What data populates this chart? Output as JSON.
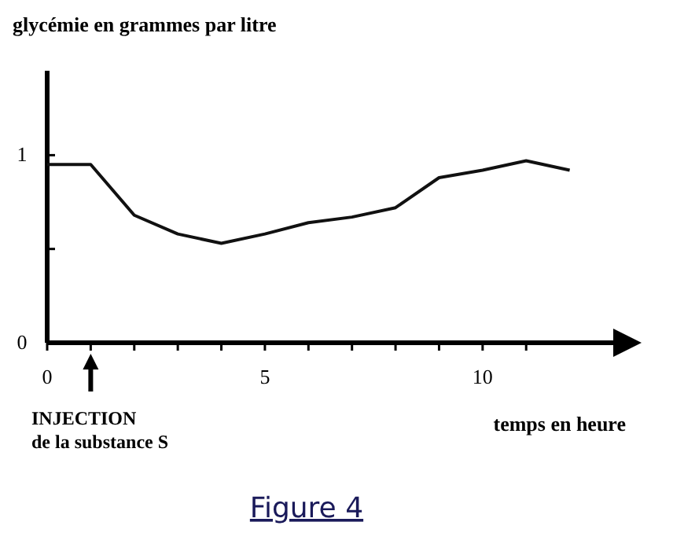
{
  "chart_data": {
    "type": "line",
    "title": "Figure 4",
    "ylabel": "glycémie en grammes par litre",
    "xlabel": "temps en heure",
    "x": [
      0,
      1,
      2,
      3,
      4,
      5,
      6,
      7,
      8,
      9,
      10,
      11,
      12
    ],
    "series": [
      {
        "color": "#111111",
        "values": [
          0.95,
          0.95,
          0.68,
          0.58,
          0.53,
          0.58,
          0.64,
          0.67,
          0.72,
          0.88,
          0.92,
          0.97,
          0.92
        ]
      }
    ],
    "xlim": [
      0,
      13
    ],
    "ylim": [
      0,
      1.45
    ],
    "xticks": [
      0,
      {
        "value": 1,
        "label": null
      },
      {
        "value": 2,
        "label": null
      },
      {
        "value": 3,
        "label": null
      },
      {
        "value": 4,
        "label": null
      },
      5,
      {
        "value": 6,
        "label": null
      },
      {
        "value": 7,
        "label": null
      },
      {
        "value": 8,
        "label": null
      },
      {
        "value": 9,
        "label": null
      },
      10,
      {
        "value": 11,
        "label": null
      }
    ],
    "yticks": [
      0,
      {
        "value": 0.5,
        "label": null
      },
      1
    ],
    "annotations": [
      "INJECTION\nde la substance S"
    ],
    "grid": false,
    "marker": "none",
    "line_style": "solid"
  }
}
